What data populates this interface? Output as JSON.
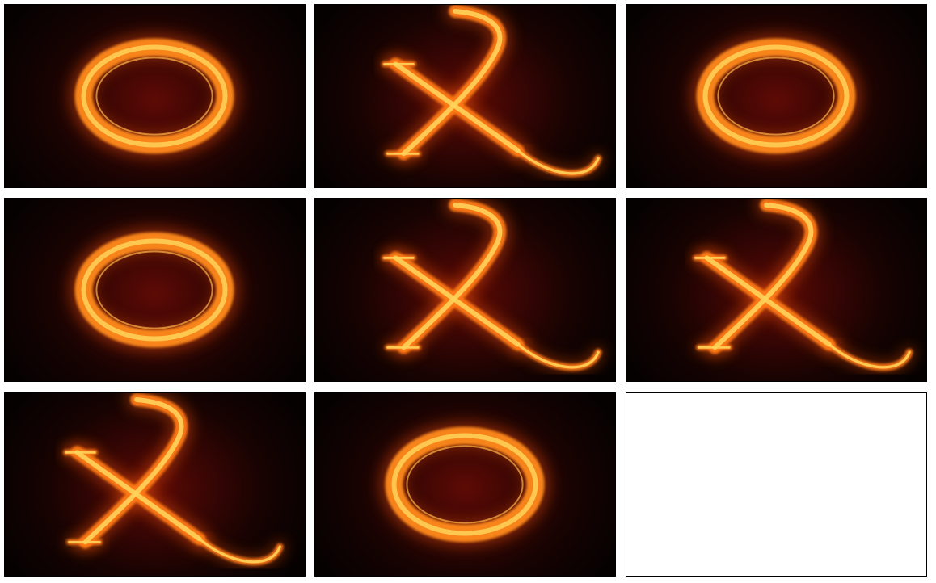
{
  "board": {
    "rows": 3,
    "cols": 3,
    "cells": [
      [
        "O",
        "X",
        "O"
      ],
      [
        "O",
        "X",
        "X"
      ],
      [
        "X",
        "O",
        ""
      ]
    ]
  },
  "colors": {
    "flame_outer": "#ff5a0a",
    "flame_core": "#ff8a1a",
    "flame_hot": "#ffd35a",
    "background_dark": "#170302"
  },
  "icons": {
    "O": "fire-letter-o-icon",
    "X": "fire-letter-x-icon"
  }
}
